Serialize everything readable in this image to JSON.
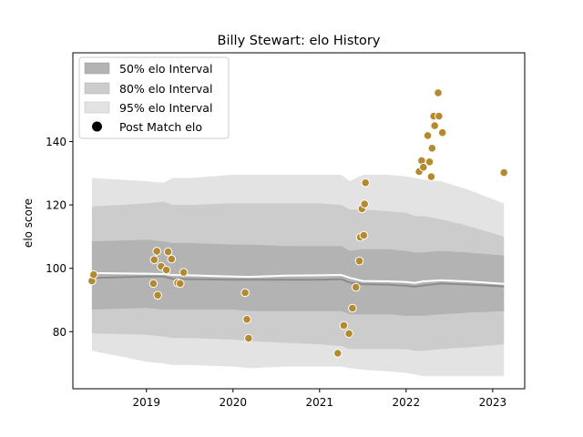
{
  "chart_data": {
    "type": "scatter",
    "title": "Billy Stewart: elo History",
    "xlabel": "",
    "ylabel": "elo score",
    "xlim": [
      2018.15,
      2023.37
    ],
    "ylim": [
      62,
      168
    ],
    "x_ticks": [
      2019,
      2020,
      2021,
      2022,
      2023
    ],
    "y_ticks": [
      80,
      100,
      120,
      140
    ],
    "grid": false,
    "legend_position": "top-left",
    "legend": {
      "band50_label": "50% elo Interval",
      "band80_label": "80% elo Interval",
      "band95_label": "95% elo Interval",
      "points_label": "Post Match elo"
    },
    "colors": {
      "band50": "#b3b3b3",
      "band80": "#cccccc",
      "band95": "#e3e3e3",
      "mean_line": "#ffffff",
      "median_line": "#8c8c8c",
      "points": "#b5892f",
      "point_edge": "#ffffff"
    },
    "bands": {
      "x": [
        2018.37,
        2019.0,
        2019.2,
        2019.3,
        2019.5,
        2020.0,
        2020.2,
        2020.6,
        2021.0,
        2021.25,
        2021.35,
        2021.5,
        2021.8,
        2022.0,
        2022.1,
        2022.2,
        2022.4,
        2022.7,
        2023.13
      ],
      "p95_upper": [
        128.5,
        127.5,
        127.0,
        128.5,
        128.5,
        129.5,
        129.5,
        129.5,
        129.5,
        129.5,
        127.5,
        129.5,
        129.5,
        129.0,
        128.5,
        128.0,
        127.5,
        125.0,
        120.5
      ],
      "p80_upper": [
        119.5,
        120.5,
        121.0,
        120.0,
        120.0,
        120.5,
        120.5,
        120.5,
        120.5,
        120.0,
        118.5,
        118.5,
        118.0,
        117.5,
        116.5,
        116.5,
        115.5,
        113.5,
        110.0
      ],
      "p50_upper": [
        108.5,
        109.0,
        108.5,
        108.0,
        108.0,
        107.5,
        107.5,
        107.0,
        107.0,
        107.0,
        105.5,
        106.0,
        106.0,
        105.5,
        105.0,
        105.0,
        105.5,
        105.0,
        104.0
      ],
      "mean": [
        98.5,
        98.3,
        98.2,
        97.9,
        97.8,
        97.4,
        97.3,
        97.7,
        97.8,
        97.9,
        97.0,
        96.0,
        95.9,
        95.7,
        95.4,
        95.9,
        96.2,
        95.9,
        95.1
      ],
      "median": [
        97.0,
        97.4,
        97.4,
        96.7,
        96.6,
        96.4,
        96.4,
        96.4,
        96.4,
        96.6,
        95.5,
        95.0,
        94.8,
        94.5,
        94.2,
        94.6,
        95.2,
        94.9,
        94.3
      ],
      "p50_lower": [
        87.0,
        87.5,
        87.0,
        87.0,
        87.0,
        87.0,
        86.5,
        86.5,
        86.5,
        86.5,
        85.5,
        85.5,
        85.5,
        85.0,
        85.0,
        85.0,
        85.5,
        86.0,
        86.5
      ],
      "p80_lower": [
        79.5,
        79.0,
        78.5,
        78.0,
        78.0,
        77.5,
        77.0,
        76.5,
        76.0,
        75.5,
        74.5,
        74.5,
        74.5,
        74.5,
        74.0,
        74.0,
        74.5,
        75.0,
        76.0
      ],
      "p95_lower": [
        74.0,
        70.5,
        70.0,
        69.5,
        69.5,
        69.0,
        68.5,
        69.0,
        69.0,
        69.0,
        68.5,
        68.0,
        67.5,
        67.0,
        66.5,
        66.0,
        66.0,
        66.0,
        66.0
      ]
    },
    "points": [
      {
        "x": 2018.37,
        "y": 96.0
      },
      {
        "x": 2018.39,
        "y": 98.0
      },
      {
        "x": 2019.08,
        "y": 95.2
      },
      {
        "x": 2019.09,
        "y": 102.7
      },
      {
        "x": 2019.12,
        "y": 105.4
      },
      {
        "x": 2019.13,
        "y": 91.5
      },
      {
        "x": 2019.17,
        "y": 100.6
      },
      {
        "x": 2019.23,
        "y": 99.5
      },
      {
        "x": 2019.25,
        "y": 105.2
      },
      {
        "x": 2019.29,
        "y": 102.9
      },
      {
        "x": 2019.36,
        "y": 95.4
      },
      {
        "x": 2019.39,
        "y": 95.2
      },
      {
        "x": 2019.43,
        "y": 98.7
      },
      {
        "x": 2020.14,
        "y": 92.3
      },
      {
        "x": 2020.16,
        "y": 83.9
      },
      {
        "x": 2020.18,
        "y": 77.9
      },
      {
        "x": 2021.21,
        "y": 73.2
      },
      {
        "x": 2021.28,
        "y": 82.0
      },
      {
        "x": 2021.34,
        "y": 79.4
      },
      {
        "x": 2021.38,
        "y": 87.4
      },
      {
        "x": 2021.42,
        "y": 94.0
      },
      {
        "x": 2021.46,
        "y": 102.3
      },
      {
        "x": 2021.47,
        "y": 109.8
      },
      {
        "x": 2021.49,
        "y": 118.8
      },
      {
        "x": 2021.51,
        "y": 110.4
      },
      {
        "x": 2021.52,
        "y": 120.3
      },
      {
        "x": 2021.53,
        "y": 127.0
      },
      {
        "x": 2022.15,
        "y": 130.5
      },
      {
        "x": 2022.18,
        "y": 134.0
      },
      {
        "x": 2022.2,
        "y": 131.9
      },
      {
        "x": 2022.25,
        "y": 141.9
      },
      {
        "x": 2022.27,
        "y": 133.6
      },
      {
        "x": 2022.29,
        "y": 128.9
      },
      {
        "x": 2022.3,
        "y": 137.9
      },
      {
        "x": 2022.32,
        "y": 148.0
      },
      {
        "x": 2022.33,
        "y": 145.0
      },
      {
        "x": 2022.37,
        "y": 155.4
      },
      {
        "x": 2022.38,
        "y": 148.0
      },
      {
        "x": 2022.42,
        "y": 142.8
      },
      {
        "x": 2023.13,
        "y": 130.2
      }
    ]
  }
}
